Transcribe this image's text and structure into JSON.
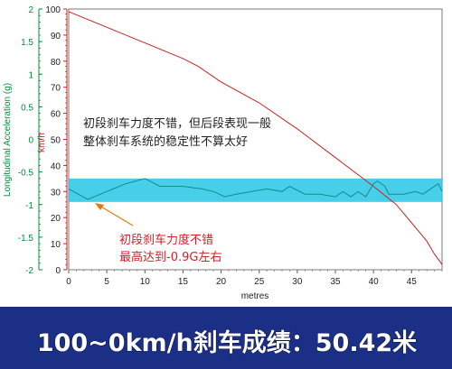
{
  "chart_data": {
    "type": "line",
    "xlabel": "metres",
    "x_ticks": [
      0,
      5,
      10,
      15,
      20,
      25,
      30,
      35,
      40,
      45
    ],
    "xlim": [
      0,
      49
    ],
    "left_axis": {
      "label": "Longitudinal Acceleration (g)",
      "ylim": [
        -2,
        2
      ],
      "ticks": [
        "2",
        "1.5",
        "1",
        "0.5",
        "0",
        "-0.5",
        "-1",
        "-1.5",
        "-2"
      ],
      "color": "#0b8a3a"
    },
    "right_axis": {
      "label": "km/h",
      "ylim": [
        0,
        100
      ],
      "ticks": [
        "100",
        "90",
        "80",
        "70",
        "60",
        "50",
        "40",
        "30",
        "20",
        "10",
        "0"
      ],
      "color": "#cc2222"
    },
    "band": {
      "from": 26,
      "to": 35,
      "color": "#27c5e5"
    },
    "series": [
      {
        "name": "speed",
        "axis": "right",
        "color": "#cc2222",
        "x": [
          0,
          5,
          10,
          15,
          17,
          20,
          25,
          30,
          35,
          40,
          43,
          45,
          47,
          48,
          49
        ],
        "y": [
          99,
          93,
          87,
          81,
          78,
          72,
          64,
          54,
          43,
          32,
          25,
          18,
          11,
          6,
          2
        ]
      },
      {
        "name": "acceleration",
        "axis": "right",
        "color": "#168a8a",
        "x": [
          0,
          2.5,
          5,
          7.5,
          10,
          12,
          15,
          17.5,
          19,
          20.5,
          22,
          24,
          26,
          28,
          29,
          31,
          33,
          35,
          36,
          37,
          38,
          39,
          40,
          40.5,
          41.5,
          42,
          44,
          45.5,
          46.5,
          47.5,
          48.5,
          49
        ],
        "y": [
          31,
          27,
          30,
          33,
          35,
          32,
          32,
          31,
          30,
          28,
          29,
          30,
          31,
          30,
          32,
          29,
          29,
          28,
          30,
          28,
          30,
          28,
          33,
          34,
          32,
          29,
          29,
          30,
          29,
          31,
          33,
          30
        ]
      }
    ]
  },
  "annotations": {
    "top_line1": "初段刹车力度不错，但后段表现一般",
    "top_line2": "整体刹车系统的稳定性不算太好",
    "bottom_line1": "初段刹车力度不错",
    "bottom_line2": "最高达到-0.9G左右"
  },
  "banner": {
    "text": "100~0km/h刹车成绩：50.42米",
    "bg": "#1c2f86",
    "color": "#ffffff"
  }
}
